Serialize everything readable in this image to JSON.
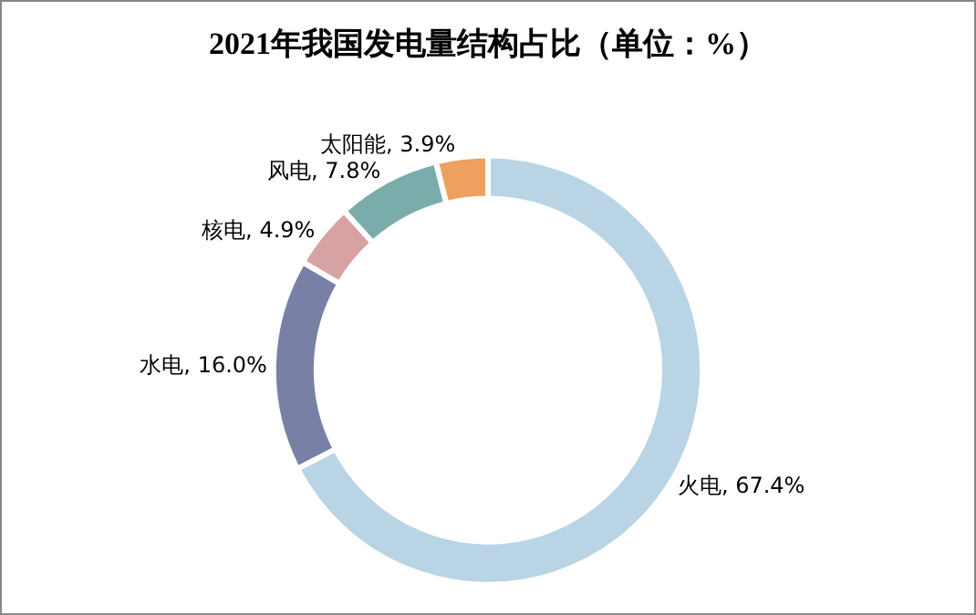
{
  "chart_data": {
    "type": "donut",
    "title": "2021年我国发电量结构占比（单位：%）",
    "categories": [
      "火电",
      "水电",
      "核电",
      "风电",
      "太阳能"
    ],
    "values": [
      67.4,
      16.0,
      4.9,
      7.8,
      3.9
    ],
    "value_labels": [
      "67.4%",
      "16.0%",
      "4.9%",
      "7.8%",
      "3.9%"
    ],
    "colors": [
      "#b9d4e4",
      "#7880a5",
      "#d6a2a3",
      "#7aacac",
      "#f0a05e"
    ],
    "legend": false
  }
}
